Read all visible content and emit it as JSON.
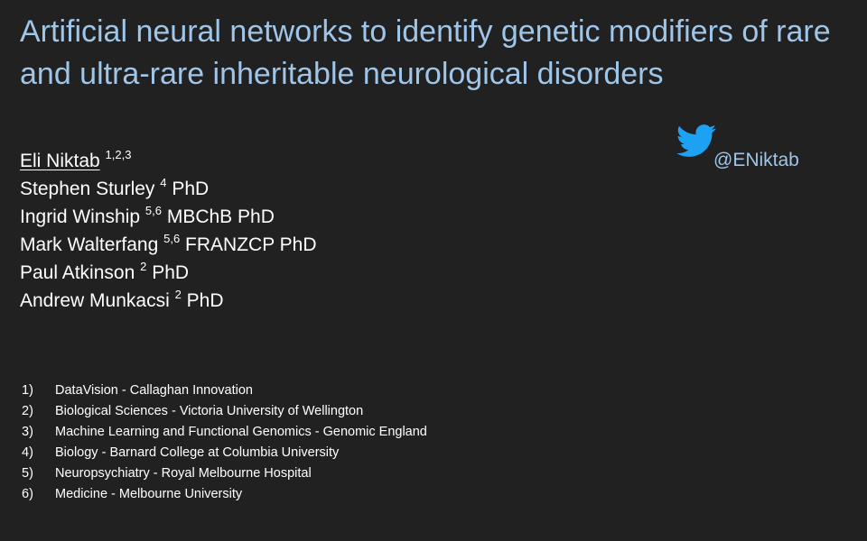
{
  "slide": {
    "title": "Artificial neural networks to identify genetic modifiers of rare and ultra-rare inheritable neurological disorders",
    "authors": [
      {
        "name": "Eli Niktab",
        "sup": "1,2,3",
        "suffix": ""
      },
      {
        "name": "Stephen Sturley",
        "sup": "4",
        "suffix": "PhD"
      },
      {
        "name": "Ingrid Winship",
        "sup": "5,6",
        "suffix": "MBChB PhD"
      },
      {
        "name": "Mark Walterfang",
        "sup": "5,6",
        "suffix": " FRANZCP PhD"
      },
      {
        "name": "Paul Atkinson",
        "sup": "2",
        "suffix": "PhD"
      },
      {
        "name": "Andrew Munkacsi",
        "sup": "2",
        "suffix": "PhD"
      }
    ],
    "twitter": {
      "icon": "twitter-bird-icon",
      "handle": "@ENiktab"
    },
    "affiliations": [
      {
        "num": "1)",
        "text": "DataVision - Callaghan Innovation"
      },
      {
        "num": "2)",
        "text": "Biological Sciences - Victoria University of Wellington"
      },
      {
        "num": "3)",
        "text": "Machine Learning and Functional Genomics - Genomic England"
      },
      {
        "num": "4)",
        "text": "Biology - Barnard College at Columbia University"
      },
      {
        "num": "5)",
        "text": "Neuropsychiatry - Royal Melbourne Hospital"
      },
      {
        "num": "6)",
        "text": "Medicine - Melbourne University"
      }
    ],
    "colors": {
      "background": "#212121",
      "title": "#9fc5e8",
      "text": "#ffffff",
      "twitter_blue": "#1da1f2"
    }
  }
}
